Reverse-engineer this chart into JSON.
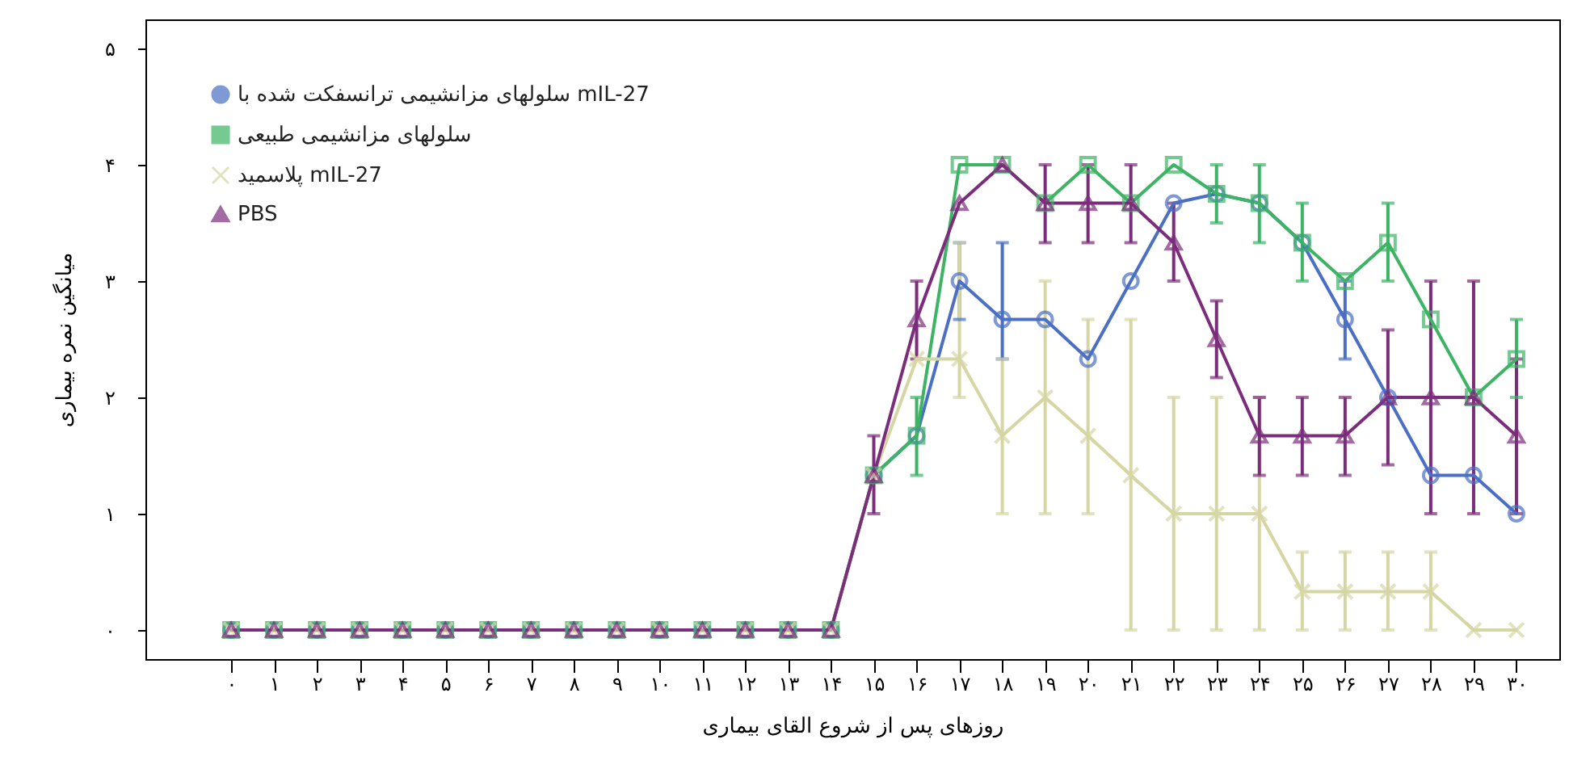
{
  "chart_data": {
    "type": "line",
    "xlabel": "روزهای پس از شروع القای بیماری",
    "ylabel": "میانگین نمره بیماری",
    "x": [
      0,
      1,
      2,
      3,
      4,
      5,
      6,
      7,
      8,
      9,
      10,
      11,
      12,
      13,
      14,
      15,
      16,
      17,
      18,
      19,
      20,
      21,
      22,
      23,
      24,
      25,
      26,
      27,
      28,
      29,
      30
    ],
    "xlim": [
      -2,
      31
    ],
    "xticks": [
      {
        "value": 0,
        "label": "۰"
      },
      {
        "value": 1,
        "label": "۱"
      },
      {
        "value": 2,
        "label": "۲"
      },
      {
        "value": 3,
        "label": "۳"
      },
      {
        "value": 4,
        "label": "۴"
      },
      {
        "value": 5,
        "label": "۵"
      },
      {
        "value": 6,
        "label": "۶"
      },
      {
        "value": 7,
        "label": "۷"
      },
      {
        "value": 8,
        "label": "۸"
      },
      {
        "value": 9,
        "label": "۹"
      },
      {
        "value": 10,
        "label": "۱۰"
      },
      {
        "value": 11,
        "label": "۱۱"
      },
      {
        "value": 12,
        "label": "۱۲"
      },
      {
        "value": 13,
        "label": "۱۳"
      },
      {
        "value": 14,
        "label": "۱۴"
      },
      {
        "value": 15,
        "label": "۱۵"
      },
      {
        "value": 16,
        "label": "۱۶"
      },
      {
        "value": 17,
        "label": "۱۷"
      },
      {
        "value": 18,
        "label": "۱۸"
      },
      {
        "value": 19,
        "label": "۱۹"
      },
      {
        "value": 20,
        "label": "۲۰"
      },
      {
        "value": 21,
        "label": "۲۱"
      },
      {
        "value": 22,
        "label": "۲۲"
      },
      {
        "value": 23,
        "label": "۲۳"
      },
      {
        "value": 24,
        "label": "۲۴"
      },
      {
        "value": 25,
        "label": "۲۵"
      },
      {
        "value": 26,
        "label": "۲۶"
      },
      {
        "value": 27,
        "label": "۲۷"
      },
      {
        "value": 28,
        "label": "۲۸"
      },
      {
        "value": 29,
        "label": "۲۹"
      },
      {
        "value": 30,
        "label": "۳۰"
      }
    ],
    "ylim": [
      -0.25,
      5.25
    ],
    "yticks": [
      {
        "value": 0,
        "label": "۰"
      },
      {
        "value": 1,
        "label": "۱"
      },
      {
        "value": 2,
        "label": "۲"
      },
      {
        "value": 3,
        "label": "۳"
      },
      {
        "value": 4,
        "label": "۴"
      },
      {
        "value": 5,
        "label": "۵"
      }
    ],
    "legend": "top left",
    "line_style": "solid",
    "series": [
      {
        "name": "سلولهای مزانشیمی ترانسفکت شده با mIL-27",
        "color": "#4a6fc4",
        "marker": "circle",
        "values": [
          0,
          0,
          0,
          0,
          0,
          0,
          0,
          0,
          0,
          0,
          0,
          0,
          0,
          0,
          0,
          1.33,
          1.67,
          3,
          2.67,
          2.67,
          2.33,
          3,
          3.67,
          3.75,
          3.67,
          3.33,
          2.67,
          2,
          1.33,
          1.33,
          1
        ],
        "errors": [
          null,
          null,
          null,
          null,
          null,
          null,
          null,
          null,
          null,
          null,
          null,
          null,
          null,
          null,
          null,
          null,
          null,
          [
            2.67,
            3.33
          ],
          [
            2.33,
            3.33
          ],
          null,
          null,
          null,
          null,
          null,
          null,
          null,
          [
            2.33,
            3
          ],
          null,
          null,
          null,
          null
        ]
      },
      {
        "name": "سلولهای مزانشیمی طبیعی",
        "color": "#3cb464",
        "marker": "square",
        "values": [
          0,
          0,
          0,
          0,
          0,
          0,
          0,
          0,
          0,
          0,
          0,
          0,
          0,
          0,
          0,
          1.33,
          1.67,
          4,
          4,
          3.67,
          4,
          3.67,
          4,
          3.75,
          3.67,
          3.33,
          3,
          3.33,
          2.67,
          2,
          2.33
        ],
        "errors": [
          null,
          null,
          null,
          null,
          null,
          null,
          null,
          null,
          null,
          null,
          null,
          null,
          null,
          null,
          null,
          null,
          [
            1.33,
            2
          ],
          null,
          null,
          null,
          null,
          null,
          null,
          [
            3.5,
            4
          ],
          [
            3.33,
            4
          ],
          [
            3,
            3.67
          ],
          null,
          [
            3,
            3.67
          ],
          null,
          null,
          [
            2,
            2.67
          ]
        ]
      },
      {
        "name": "پلاسمید mIL-27",
        "color": "#d6d6a4",
        "marker": "cross",
        "values": [
          0,
          0,
          0,
          0,
          0,
          0,
          0,
          0,
          0,
          0,
          0,
          0,
          0,
          0,
          0,
          1.33,
          2.33,
          2.33,
          1.67,
          2,
          1.67,
          1.33,
          1,
          1,
          1,
          0.33,
          0.33,
          0.33,
          0.33,
          0,
          0
        ],
        "errors": [
          null,
          null,
          null,
          null,
          null,
          null,
          null,
          null,
          null,
          null,
          null,
          null,
          null,
          null,
          null,
          null,
          null,
          [
            2,
            3.33
          ],
          [
            1,
            2.33
          ],
          [
            1,
            3
          ],
          [
            1,
            2.67
          ],
          [
            0,
            2.67
          ],
          [
            0,
            2
          ],
          [
            0,
            2
          ],
          [
            0,
            2
          ],
          [
            0,
            0.67
          ],
          [
            0,
            0.67
          ],
          [
            0,
            0.67
          ],
          [
            0,
            0.67
          ],
          null,
          null
        ]
      },
      {
        "name": "PBS",
        "color": "#7b2d7b",
        "marker": "triangle",
        "values": [
          0,
          0,
          0,
          0,
          0,
          0,
          0,
          0,
          0,
          0,
          0,
          0,
          0,
          0,
          0,
          1.33,
          2.67,
          3.67,
          4,
          3.67,
          3.67,
          3.67,
          3.33,
          2.5,
          1.67,
          1.67,
          1.67,
          2,
          2,
          2,
          1.67
        ],
        "errors": [
          null,
          null,
          null,
          null,
          null,
          null,
          null,
          null,
          null,
          null,
          null,
          null,
          null,
          null,
          null,
          [
            1,
            1.67
          ],
          [
            2.33,
            3
          ],
          null,
          null,
          [
            3.33,
            4
          ],
          [
            3.33,
            4
          ],
          [
            3.33,
            4
          ],
          [
            3,
            3.67
          ],
          [
            2.17,
            2.83
          ],
          [
            1.33,
            2
          ],
          [
            1.33,
            2
          ],
          [
            1.33,
            2
          ],
          [
            1.42,
            2.58
          ],
          [
            1,
            3
          ],
          [
            1,
            3
          ],
          [
            1,
            2.33
          ]
        ]
      }
    ]
  }
}
